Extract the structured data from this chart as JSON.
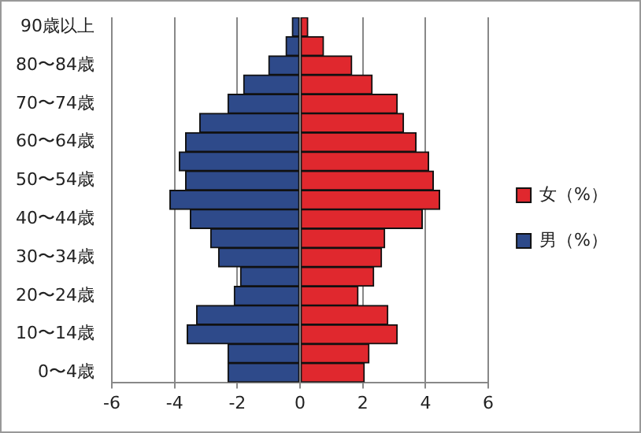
{
  "chart_data": {
    "type": "bar",
    "orientation": "horizontal",
    "stacked": true,
    "categories": [
      "90歳以上",
      null,
      "80〜84歳",
      null,
      "70〜74歳",
      null,
      "60〜64歳",
      null,
      "50〜54歳",
      null,
      "40〜44歳",
      null,
      "30〜34歳",
      null,
      "20〜24歳",
      null,
      "10〜14歳",
      null,
      "0〜4歳"
    ],
    "series": [
      {
        "name": "女（%）",
        "color": "#e0282e",
        "values": [
          0.25,
          0.75,
          1.65,
          2.3,
          3.1,
          3.3,
          3.7,
          4.1,
          4.25,
          4.45,
          3.9,
          2.7,
          2.6,
          2.35,
          1.85,
          2.8,
          3.1,
          2.2,
          2.05
        ]
      },
      {
        "name": "男（%）",
        "color": "#2e4a8a",
        "values": [
          -0.25,
          -0.45,
          -1.0,
          -1.8,
          -2.3,
          -3.2,
          -3.65,
          -3.85,
          -3.65,
          -4.15,
          -3.5,
          -2.85,
          -2.6,
          -1.9,
          -2.1,
          -3.3,
          -3.6,
          -2.3,
          -2.3
        ]
      }
    ],
    "xlim": [
      -6,
      6
    ],
    "xticks": [
      -6,
      -4,
      -2,
      0,
      2,
      4,
      6
    ],
    "grid": "x",
    "legend": "right"
  }
}
